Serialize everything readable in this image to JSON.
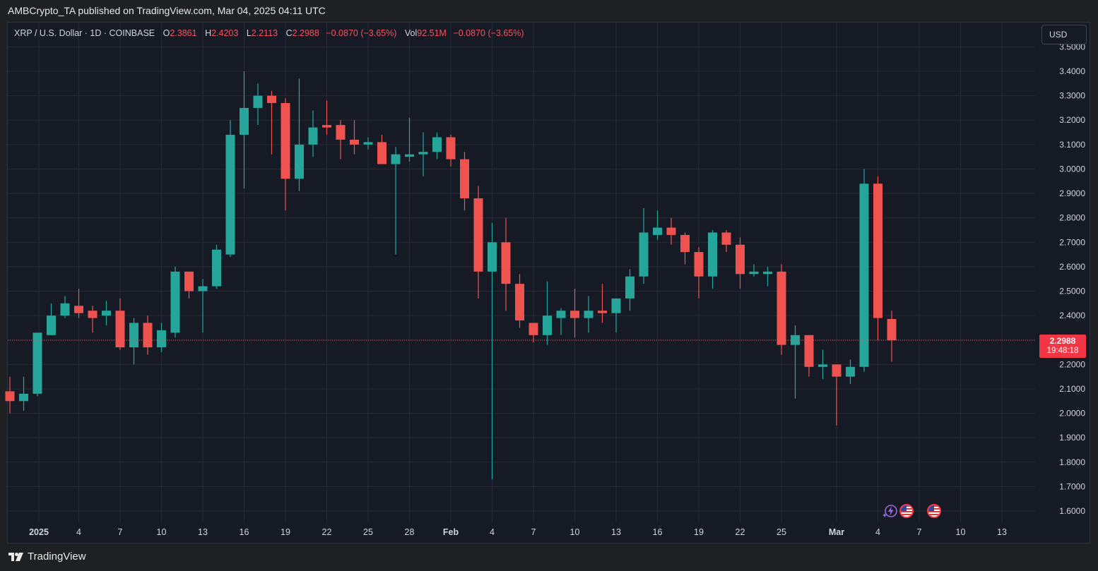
{
  "header": {
    "published": "AMBCrypto_TA published on TradingView.com, Mar 04, 2025 04:11 UTC"
  },
  "legend": {
    "symbol": "XRP / U.S. Dollar · 1D · COINBASE",
    "o_label": "O",
    "o_value": "2.3861",
    "h_label": "H",
    "h_value": "2.4203",
    "l_label": "L",
    "l_value": "2.2113",
    "c_label": "C",
    "c_value": "2.2988",
    "change": "−0.0870 (−3.65%)",
    "vol_label": "Vol",
    "vol_value": "92.51M",
    "vol_change": "−0.0870 (−3.65%)"
  },
  "currency_button": "USD",
  "last_price": {
    "price": "2.2988",
    "countdown": "19:48:18"
  },
  "brand": "TradingView",
  "colors": {
    "background": "#161a25",
    "up": "#26a69a",
    "down": "#ef5350",
    "grid": "#262a36",
    "text": "#d1d4dc",
    "price_tag": "#f23645"
  },
  "icons": {
    "logo": "tradingview-logo",
    "events": [
      "lightning-event-icon",
      "us-flag-event-icon",
      "us-flag-event-icon"
    ]
  },
  "chart_data": {
    "type": "candlestick",
    "y_ticks": [
      "1.6000",
      "1.7000",
      "1.8000",
      "1.9000",
      "2.0000",
      "2.1000",
      "2.2000",
      "2.3000",
      "2.4000",
      "2.5000",
      "2.6000",
      "2.7000",
      "2.8000",
      "2.9000",
      "3.0000",
      "3.1000",
      "3.2000",
      "3.3000",
      "3.4000",
      "3.5000"
    ],
    "x_ticks": [
      "2025",
      "4",
      "7",
      "10",
      "13",
      "16",
      "19",
      "22",
      "25",
      "28",
      "Feb",
      "4",
      "7",
      "10",
      "13",
      "16",
      "19",
      "22",
      "25",
      "Mar",
      "4",
      "7",
      "10",
      "13"
    ],
    "ylim": [
      1.55,
      3.5
    ],
    "grid": true,
    "candles": [
      {
        "o": 2.09,
        "h": 2.15,
        "l": 2.0,
        "c": 2.05
      },
      {
        "o": 2.05,
        "h": 2.15,
        "l": 2.01,
        "c": 2.08
      },
      {
        "o": 2.08,
        "h": 2.33,
        "l": 2.07,
        "c": 2.33
      },
      {
        "o": 2.32,
        "h": 2.45,
        "l": 2.32,
        "c": 2.4
      },
      {
        "o": 2.4,
        "h": 2.48,
        "l": 2.39,
        "c": 2.45
      },
      {
        "o": 2.44,
        "h": 2.51,
        "l": 2.39,
        "c": 2.41
      },
      {
        "o": 2.42,
        "h": 2.44,
        "l": 2.33,
        "c": 2.39
      },
      {
        "o": 2.4,
        "h": 2.46,
        "l": 2.36,
        "c": 2.42
      },
      {
        "o": 2.42,
        "h": 2.47,
        "l": 2.26,
        "c": 2.27
      },
      {
        "o": 2.27,
        "h": 2.39,
        "l": 2.2,
        "c": 2.37
      },
      {
        "o": 2.37,
        "h": 2.4,
        "l": 2.24,
        "c": 2.27
      },
      {
        "o": 2.27,
        "h": 2.37,
        "l": 2.25,
        "c": 2.34
      },
      {
        "o": 2.33,
        "h": 2.6,
        "l": 2.31,
        "c": 2.58
      },
      {
        "o": 2.58,
        "h": 2.58,
        "l": 2.47,
        "c": 2.5
      },
      {
        "o": 2.5,
        "h": 2.55,
        "l": 2.33,
        "c": 2.52
      },
      {
        "o": 2.52,
        "h": 2.69,
        "l": 2.51,
        "c": 2.67
      },
      {
        "o": 2.65,
        "h": 3.2,
        "l": 2.64,
        "c": 3.14
      },
      {
        "o": 3.14,
        "h": 3.4,
        "l": 2.92,
        "c": 3.25
      },
      {
        "o": 3.25,
        "h": 3.35,
        "l": 3.18,
        "c": 3.3
      },
      {
        "o": 3.3,
        "h": 3.32,
        "l": 3.06,
        "c": 3.27
      },
      {
        "o": 3.27,
        "h": 3.29,
        "l": 2.83,
        "c": 2.96
      },
      {
        "o": 2.96,
        "h": 3.37,
        "l": 2.91,
        "c": 3.1
      },
      {
        "o": 3.1,
        "h": 3.24,
        "l": 3.05,
        "c": 3.17
      },
      {
        "o": 3.18,
        "h": 3.28,
        "l": 3.14,
        "c": 3.17
      },
      {
        "o": 3.18,
        "h": 3.2,
        "l": 3.04,
        "c": 3.12
      },
      {
        "o": 3.12,
        "h": 3.2,
        "l": 3.06,
        "c": 3.1
      },
      {
        "o": 3.1,
        "h": 3.13,
        "l": 3.08,
        "c": 3.11
      },
      {
        "o": 3.11,
        "h": 3.14,
        "l": 3.02,
        "c": 3.02
      },
      {
        "o": 3.02,
        "h": 3.09,
        "l": 2.65,
        "c": 3.06
      },
      {
        "o": 3.05,
        "h": 3.21,
        "l": 3.03,
        "c": 3.06
      },
      {
        "o": 3.06,
        "h": 3.15,
        "l": 2.97,
        "c": 3.07
      },
      {
        "o": 3.07,
        "h": 3.15,
        "l": 3.04,
        "c": 3.13
      },
      {
        "o": 3.13,
        "h": 3.14,
        "l": 3.01,
        "c": 3.04
      },
      {
        "o": 3.04,
        "h": 3.07,
        "l": 2.83,
        "c": 2.88
      },
      {
        "o": 2.88,
        "h": 2.93,
        "l": 2.47,
        "c": 2.58
      },
      {
        "o": 2.58,
        "h": 2.78,
        "l": 1.73,
        "c": 2.7
      },
      {
        "o": 2.7,
        "h": 2.8,
        "l": 2.42,
        "c": 2.53
      },
      {
        "o": 2.53,
        "h": 2.57,
        "l": 2.35,
        "c": 2.38
      },
      {
        "o": 2.37,
        "h": 2.37,
        "l": 2.29,
        "c": 2.32
      },
      {
        "o": 2.32,
        "h": 2.54,
        "l": 2.28,
        "c": 2.4
      },
      {
        "o": 2.39,
        "h": 2.43,
        "l": 2.32,
        "c": 2.42
      },
      {
        "o": 2.42,
        "h": 2.51,
        "l": 2.31,
        "c": 2.39
      },
      {
        "o": 2.39,
        "h": 2.48,
        "l": 2.33,
        "c": 2.42
      },
      {
        "o": 2.42,
        "h": 2.53,
        "l": 2.37,
        "c": 2.41
      },
      {
        "o": 2.41,
        "h": 2.47,
        "l": 2.33,
        "c": 2.47
      },
      {
        "o": 2.47,
        "h": 2.59,
        "l": 2.42,
        "c": 2.56
      },
      {
        "o": 2.56,
        "h": 2.84,
        "l": 2.53,
        "c": 2.74
      },
      {
        "o": 2.73,
        "h": 2.83,
        "l": 2.71,
        "c": 2.76
      },
      {
        "o": 2.76,
        "h": 2.8,
        "l": 2.69,
        "c": 2.73
      },
      {
        "o": 2.73,
        "h": 2.74,
        "l": 2.61,
        "c": 2.66
      },
      {
        "o": 2.66,
        "h": 2.68,
        "l": 2.47,
        "c": 2.56
      },
      {
        "o": 2.56,
        "h": 2.75,
        "l": 2.51,
        "c": 2.74
      },
      {
        "o": 2.74,
        "h": 2.75,
        "l": 2.66,
        "c": 2.69
      },
      {
        "o": 2.69,
        "h": 2.72,
        "l": 2.51,
        "c": 2.57
      },
      {
        "o": 2.57,
        "h": 2.61,
        "l": 2.56,
        "c": 2.58
      },
      {
        "o": 2.57,
        "h": 2.6,
        "l": 2.52,
        "c": 2.58
      },
      {
        "o": 2.58,
        "h": 2.61,
        "l": 2.24,
        "c": 2.28
      },
      {
        "o": 2.28,
        "h": 2.36,
        "l": 2.06,
        "c": 2.32
      },
      {
        "o": 2.32,
        "h": 2.32,
        "l": 2.15,
        "c": 2.19
      },
      {
        "o": 2.19,
        "h": 2.26,
        "l": 2.14,
        "c": 2.2
      },
      {
        "o": 2.2,
        "h": 2.2,
        "l": 1.95,
        "c": 2.15
      },
      {
        "o": 2.15,
        "h": 2.22,
        "l": 2.12,
        "c": 2.19
      },
      {
        "o": 2.19,
        "h": 3.0,
        "l": 2.17,
        "c": 2.94
      },
      {
        "o": 2.94,
        "h": 2.97,
        "l": 2.3,
        "c": 2.39
      },
      {
        "o": 2.386,
        "h": 2.42,
        "l": 2.211,
        "c": 2.299
      }
    ]
  }
}
